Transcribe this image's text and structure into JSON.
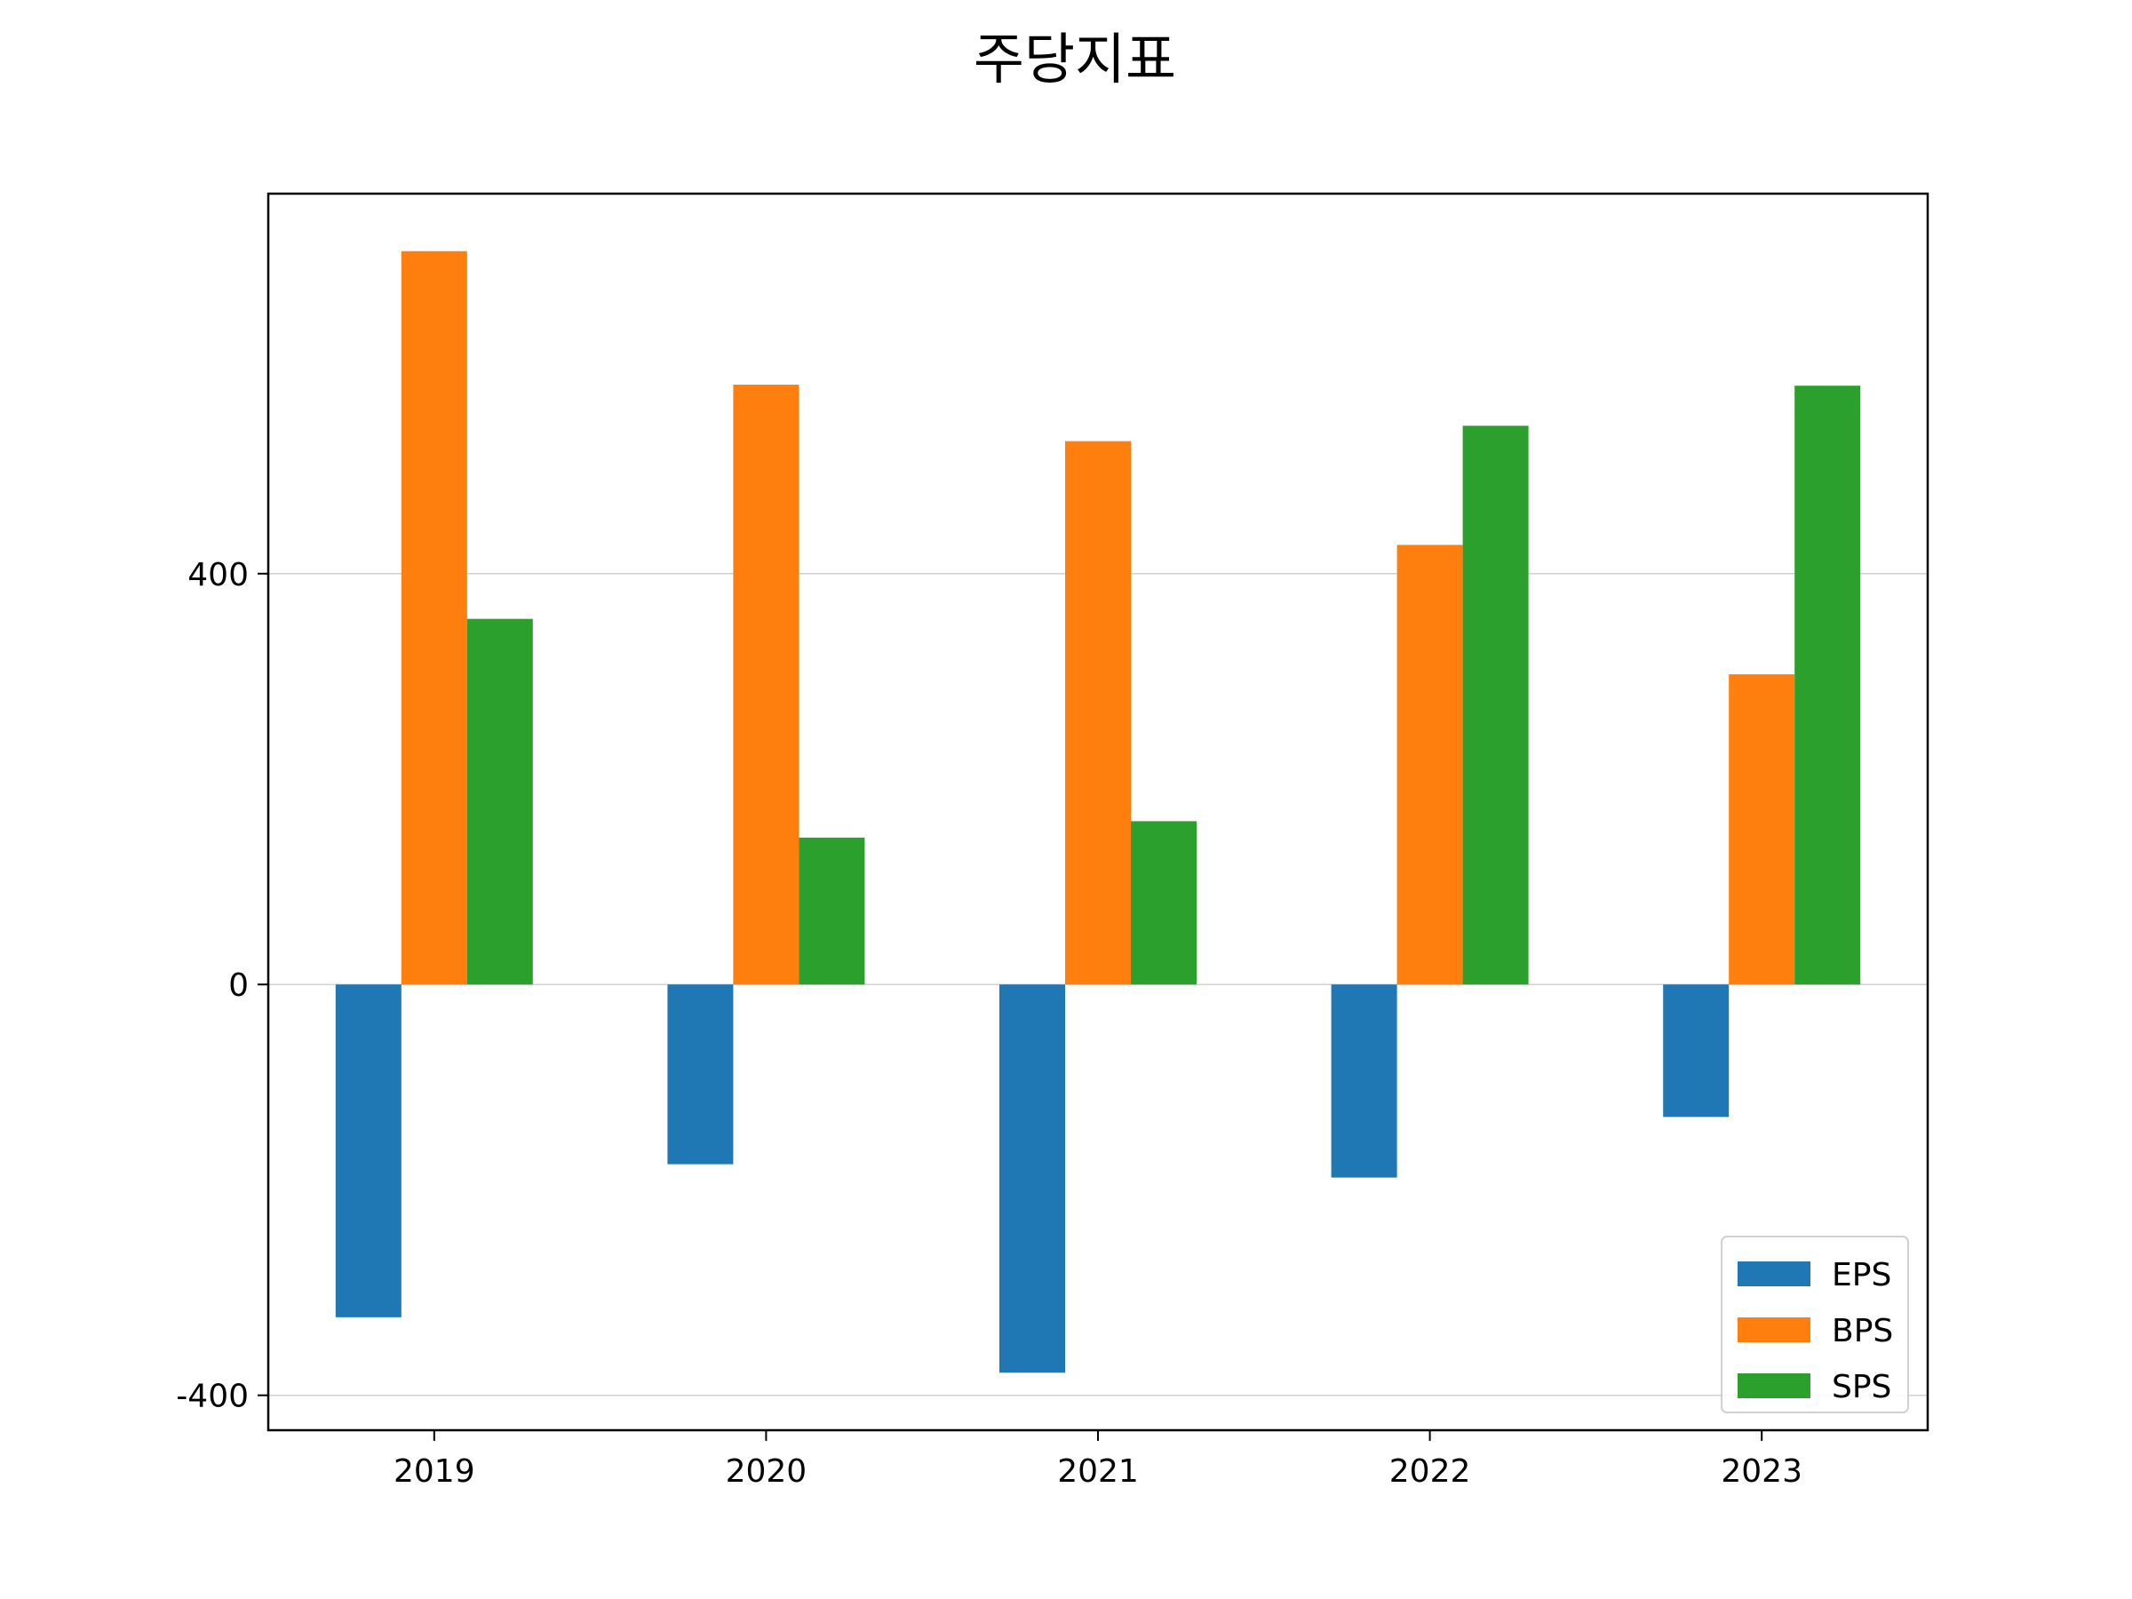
{
  "chart_data": {
    "type": "bar",
    "title": "주당지표",
    "xlabel": "",
    "ylabel": "",
    "categories": [
      "2019",
      "2020",
      "2021",
      "2022",
      "2023"
    ],
    "series": [
      {
        "name": "EPS",
        "color": "#1f77b4",
        "values": [
          -324,
          -175,
          -378,
          -188,
          -129
        ]
      },
      {
        "name": "BPS",
        "color": "#ff7f0e",
        "values": [
          714,
          584,
          529,
          428,
          302
        ]
      },
      {
        "name": "SPS",
        "color": "#2ca02c",
        "values": [
          356,
          143,
          159,
          544,
          583
        ]
      }
    ],
    "ylim": [
      -434,
      770
    ],
    "yticks": [
      -400,
      0,
      400
    ],
    "ytick_labels": [
      "-400",
      "0",
      "400"
    ],
    "grid": "y",
    "legend_position": "lower-right"
  }
}
